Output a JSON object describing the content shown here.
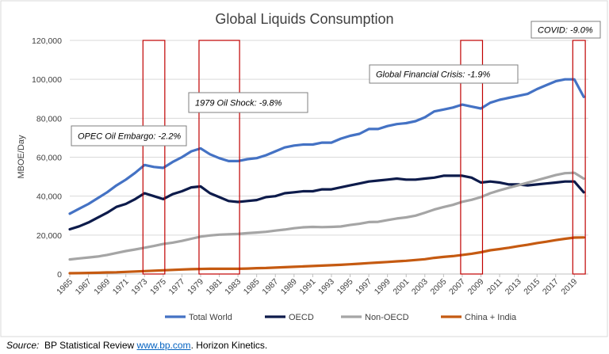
{
  "chart_data": {
    "type": "line",
    "title": "Global Liquids Consumption",
    "ylabel": "MBOE/Day",
    "xlabel": "",
    "ylim": [
      0,
      120000
    ],
    "y_ticks": [
      "0",
      "20,000",
      "40,000",
      "60,000",
      "80,000",
      "100,000",
      "120,000"
    ],
    "grid": "horizontal",
    "legend_position": "bottom",
    "x": [
      1965,
      1966,
      1967,
      1968,
      1969,
      1970,
      1971,
      1972,
      1973,
      1974,
      1975,
      1976,
      1977,
      1978,
      1979,
      1980,
      1981,
      1982,
      1983,
      1984,
      1985,
      1986,
      1987,
      1988,
      1989,
      1990,
      1991,
      1992,
      1993,
      1994,
      1995,
      1996,
      1997,
      1998,
      1999,
      2000,
      2001,
      2002,
      2003,
      2004,
      2005,
      2006,
      2007,
      2008,
      2009,
      2010,
      2011,
      2012,
      2013,
      2014,
      2015,
      2016,
      2017,
      2018,
      2019,
      2020
    ],
    "x_tick_labels": [
      "1965",
      "1967",
      "1969",
      "1971",
      "1973",
      "1975",
      "1977",
      "1979",
      "1981",
      "1983",
      "1985",
      "1987",
      "1989",
      "1991",
      "1993",
      "1995",
      "1997",
      "1999",
      "2001",
      "2003",
      "2005",
      "2007",
      "2009",
      "2011",
      "2013",
      "2015",
      "2017",
      "2019"
    ],
    "series": [
      {
        "name": "Total World",
        "color": "#4472c4",
        "values": [
          31000,
          33500,
          36000,
          39000,
          42000,
          45500,
          48500,
          52000,
          56000,
          55000,
          54500,
          57500,
          60000,
          63000,
          64500,
          61500,
          59500,
          58000,
          58000,
          59000,
          59500,
          61000,
          63000,
          65000,
          66000,
          66500,
          66500,
          67500,
          67500,
          69500,
          71000,
          72000,
          74500,
          74500,
          76000,
          77000,
          77500,
          78500,
          80500,
          83500,
          84500,
          85500,
          87000,
          86000,
          85000,
          88000,
          89500,
          90500,
          91500,
          92500,
          95000,
          97000,
          99000,
          100000,
          100000,
          91000
        ]
      },
      {
        "name": "OECD",
        "color": "#0d1b4b",
        "values": [
          23000,
          24500,
          26500,
          29000,
          31500,
          34500,
          36000,
          38500,
          41500,
          40000,
          38500,
          41000,
          42500,
          44500,
          45000,
          41500,
          39500,
          37500,
          37000,
          37500,
          38000,
          39500,
          40000,
          41500,
          42000,
          42500,
          42500,
          43500,
          43500,
          44500,
          45500,
          46500,
          47500,
          48000,
          48500,
          49000,
          48500,
          48500,
          49000,
          49500,
          50500,
          50500,
          50500,
          49500,
          47000,
          47500,
          47000,
          46000,
          46000,
          45500,
          46000,
          46500,
          47000,
          47500,
          47500,
          42000
        ]
      },
      {
        "name": "Non-OECD",
        "color": "#a5a5a5",
        "values": [
          7500,
          8000,
          8500,
          9000,
          9800,
          10800,
          11800,
          12600,
          13500,
          14400,
          15400,
          16100,
          17000,
          18100,
          19200,
          19800,
          20200,
          20400,
          20600,
          21000,
          21300,
          21700,
          22300,
          22800,
          23500,
          24000,
          24200,
          24100,
          24200,
          24400,
          25200,
          25800,
          26700,
          26800,
          27700,
          28500,
          29100,
          30000,
          31500,
          33100,
          34400,
          35500,
          37100,
          38100,
          39500,
          41500,
          43000,
          44300,
          45600,
          46900,
          48200,
          49500,
          50800,
          51800,
          52000,
          49000
        ]
      },
      {
        "name": "China + India",
        "color": "#c55a11",
        "values": [
          400,
          450,
          550,
          650,
          800,
          900,
          1100,
          1300,
          1500,
          1700,
          1900,
          2100,
          2300,
          2500,
          2600,
          2700,
          2700,
          2700,
          2700,
          2800,
          3000,
          3100,
          3300,
          3500,
          3700,
          3900,
          4100,
          4300,
          4500,
          4700,
          5000,
          5300,
          5600,
          5900,
          6200,
          6500,
          6800,
          7200,
          7600,
          8300,
          8800,
          9200,
          9800,
          10400,
          11200,
          12200,
          12800,
          13500,
          14300,
          15000,
          15900,
          16600,
          17400,
          18100,
          18700,
          18800
        ]
      }
    ],
    "highlight_periods": [
      {
        "label": "OPEC Oil Embargo: -2.2%",
        "start": 1973,
        "end": 1975
      },
      {
        "label": "1979 Oil Shock: -9.8%",
        "start": 1979,
        "end": 1983
      },
      {
        "label": "Global Financial Crisis: -1.9%",
        "start": 2007,
        "end": 2009
      },
      {
        "label": "COVID: -9.0%",
        "start": 2019,
        "end": 2020
      }
    ]
  },
  "source": {
    "label": "Source:",
    "text_before": "BP Statistical Review",
    "link": "www.bp.com",
    "text_after": ".  Horizon Kinetics."
  }
}
